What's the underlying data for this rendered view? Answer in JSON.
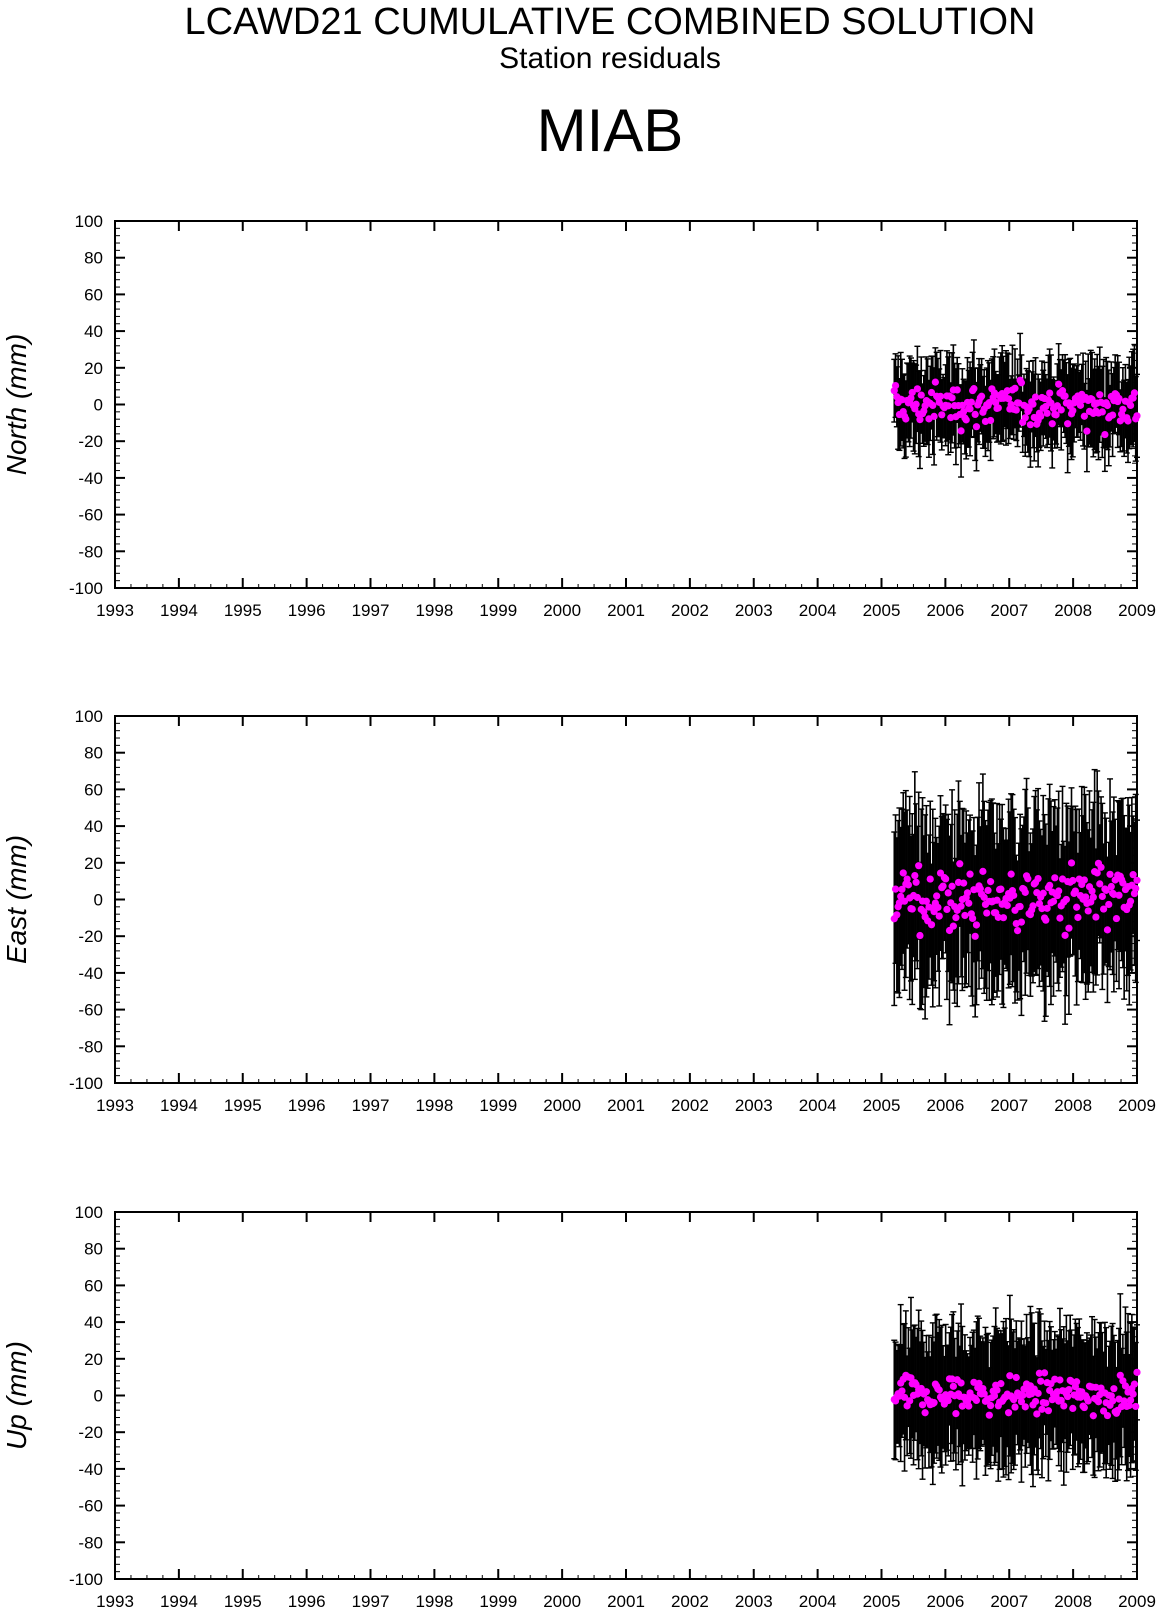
{
  "header": {
    "title": "LCAWD21 CUMULATIVE COMBINED SOLUTION",
    "subtitle": "Station residuals",
    "station": "MIAB"
  },
  "chart_data": [
    {
      "type": "scatter",
      "component": "North",
      "ylabel": "North (mm)",
      "xlim": [
        1993,
        2009
      ],
      "ylim": [
        -100,
        100
      ],
      "xticks": [
        1993,
        1994,
        1995,
        1996,
        1997,
        1998,
        1999,
        2000,
        2001,
        2002,
        2003,
        2004,
        2005,
        2006,
        2007,
        2008,
        2009
      ],
      "yticks": [
        -100,
        -80,
        -60,
        -40,
        -20,
        0,
        20,
        40,
        60,
        80,
        100
      ],
      "data_range_x": [
        2005.2,
        2009.0
      ],
      "marker_color": "#ff00ff",
      "errorbar_color": "#000000",
      "approx_residual_spread_mm": 10,
      "approx_error_halfwidth_mm": 20,
      "n_points_approx": 190
    },
    {
      "type": "scatter",
      "component": "East",
      "ylabel": "East (mm)",
      "xlim": [
        1993,
        2009
      ],
      "ylim": [
        -100,
        100
      ],
      "xticks": [
        1993,
        1994,
        1995,
        1996,
        1997,
        1998,
        1999,
        2000,
        2001,
        2002,
        2003,
        2004,
        2005,
        2006,
        2007,
        2008,
        2009
      ],
      "yticks": [
        -100,
        -80,
        -60,
        -40,
        -20,
        0,
        20,
        40,
        60,
        80,
        100
      ],
      "data_range_x": [
        2005.2,
        2009.0
      ],
      "marker_color": "#ff00ff",
      "errorbar_color": "#000000",
      "approx_residual_spread_mm": 16,
      "approx_error_halfwidth_mm": 42,
      "n_points_approx": 190
    },
    {
      "type": "scatter",
      "component": "Up",
      "ylabel": "Up (mm)",
      "xlim": [
        1993,
        2009
      ],
      "ylim": [
        -100,
        100
      ],
      "xticks": [
        1993,
        1994,
        1995,
        1996,
        1997,
        1998,
        1999,
        2000,
        2001,
        2002,
        2003,
        2004,
        2005,
        2006,
        2007,
        2008,
        2009
      ],
      "yticks": [
        -100,
        -80,
        -60,
        -40,
        -20,
        0,
        20,
        40,
        60,
        80,
        100
      ],
      "data_range_x": [
        2005.2,
        2009.0
      ],
      "marker_color": "#ff00ff",
      "errorbar_color": "#000000",
      "approx_residual_spread_mm": 9,
      "approx_error_halfwidth_mm": 33,
      "n_points_approx": 190
    }
  ]
}
